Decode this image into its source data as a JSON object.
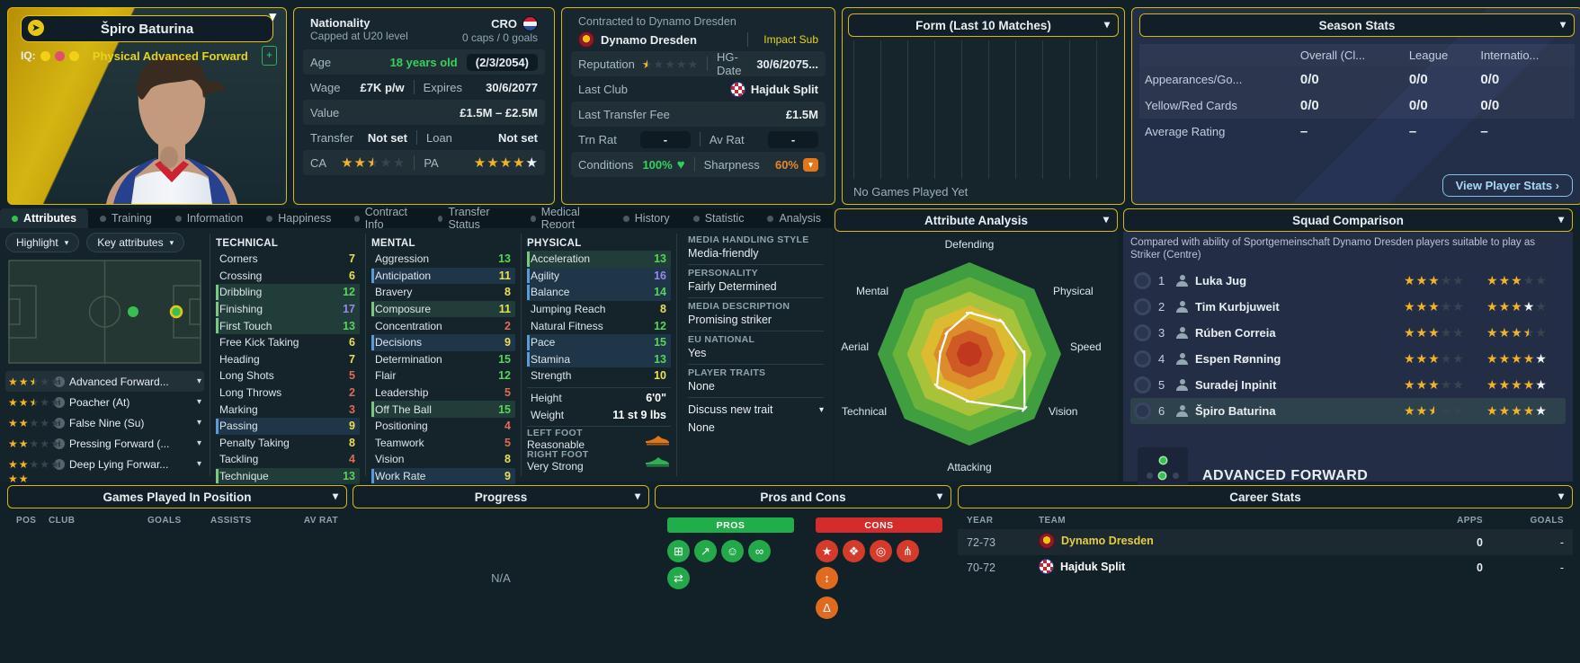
{
  "player": {
    "name": "Špiro Baturina",
    "iq_label": "IQ:",
    "role_tag": "Physical Advanced Forward"
  },
  "info_left": {
    "nationality_label": "Nationality",
    "nationality_sub": "Capped at U20 level",
    "country_code": "CRO",
    "caps": "0 caps / 0 goals",
    "age_label": "Age",
    "age_value": "18 years old",
    "birth_date": "(2/3/2054)",
    "wage_label": "Wage",
    "wage_value": "£7K p/w",
    "expires_label": "Expires",
    "expires_value": "30/6/2077",
    "value_label": "Value",
    "value_value": "£1.5M – £2.5M",
    "transfer_label": "Transfer",
    "transfer_value": "Not set",
    "loan_label": "Loan",
    "loan_value": "Not set",
    "ca_label": "CA",
    "pa_label": "PA",
    "ca_stars": {
      "full": 2,
      "half": 1,
      "empty": 2
    },
    "pa_stars": {
      "full": 4,
      "white": 1
    }
  },
  "info_right": {
    "contracted_to": "Contracted to Dynamo Dresden",
    "club": "Dynamo Dresden",
    "squad_status": "Impact Sub",
    "reputation_label": "Reputation",
    "reputation_stars": {
      "half": 1,
      "empty": 4
    },
    "hg_label": "HG-Date",
    "hg_value": "30/6/2075...",
    "last_club_label": "Last Club",
    "last_club": "Hajduk Split",
    "fee_label": "Last Transfer Fee",
    "fee_value": "£1.5M",
    "trn_label": "Trn Rat",
    "trn_value": "-",
    "avrat_label": "Av Rat",
    "avrat_value": "-",
    "cond_label": "Conditions",
    "cond_value": "100%",
    "sharp_label": "Sharpness",
    "sharp_value": "60%"
  },
  "form_panel": {
    "title": "Form (Last 10 Matches)",
    "empty": "No Games Played Yet"
  },
  "season_stats": {
    "title": "Season Stats",
    "columns": [
      "Overall (Cl...",
      "League",
      "Internatio..."
    ],
    "rows": [
      {
        "label": "Appearances/Go...",
        "values": [
          "0/0",
          "0/0",
          "0/0"
        ]
      },
      {
        "label": "Yellow/Red Cards",
        "values": [
          "0/0",
          "0/0",
          "0/0"
        ]
      },
      {
        "label": "Average Rating",
        "values": [
          "–",
          "–",
          "–"
        ]
      }
    ],
    "button": "View Player Stats ›"
  },
  "tabs": [
    {
      "label": "Attributes",
      "active": true
    },
    {
      "label": "Training"
    },
    {
      "label": "Information"
    },
    {
      "label": "Happiness"
    },
    {
      "label": "Contract Info"
    },
    {
      "label": "Transfer Status"
    },
    {
      "label": "Medical Report"
    },
    {
      "label": "History"
    },
    {
      "label": "Statistic"
    },
    {
      "label": "Analysis"
    }
  ],
  "attributes_toolbar": {
    "highlight": "Highlight",
    "key_attributes": "Key attributes"
  },
  "roles": [
    {
      "stars": {
        "full": 2,
        "half": 1,
        "empty": 2
      },
      "label": "Advanced Forward...",
      "selected": true
    },
    {
      "stars": {
        "full": 2,
        "half": 1,
        "empty": 2
      },
      "label": "Poacher (At)"
    },
    {
      "stars": {
        "full": 2,
        "empty": 3
      },
      "label": "False Nine (Su)"
    },
    {
      "stars": {
        "full": 2,
        "empty": 3
      },
      "label": "Pressing Forward (..."
    },
    {
      "stars": {
        "full": 2,
        "empty": 3
      },
      "label": "Deep Lying Forwar..."
    }
  ],
  "technical": {
    "title": "TECHNICAL",
    "attrs": [
      {
        "name": "Corners",
        "value": 7
      },
      {
        "name": "Crossing",
        "value": 6
      },
      {
        "name": "Dribbling",
        "value": 12,
        "hl": "g"
      },
      {
        "name": "Finishing",
        "value": 17,
        "hl": "g"
      },
      {
        "name": "First Touch",
        "value": 13,
        "hl": "g"
      },
      {
        "name": "Free Kick Taking",
        "value": 6
      },
      {
        "name": "Heading",
        "value": 7
      },
      {
        "name": "Long Shots",
        "value": 5
      },
      {
        "name": "Long Throws",
        "value": 2
      },
      {
        "name": "Marking",
        "value": 3
      },
      {
        "name": "Passing",
        "value": 9,
        "hl": "b"
      },
      {
        "name": "Penalty Taking",
        "value": 8
      },
      {
        "name": "Tackling",
        "value": 4
      },
      {
        "name": "Technique",
        "value": 13,
        "hl": "g"
      }
    ]
  },
  "mental": {
    "title": "MENTAL",
    "attrs": [
      {
        "name": "Aggression",
        "value": 13
      },
      {
        "name": "Anticipation",
        "value": 11,
        "hl": "b"
      },
      {
        "name": "Bravery",
        "value": 8
      },
      {
        "name": "Composure",
        "value": 11,
        "hl": "g"
      },
      {
        "name": "Concentration",
        "value": 2
      },
      {
        "name": "Decisions",
        "value": 9,
        "hl": "b"
      },
      {
        "name": "Determination",
        "value": 15
      },
      {
        "name": "Flair",
        "value": 12
      },
      {
        "name": "Leadership",
        "value": 5
      },
      {
        "name": "Off The Ball",
        "value": 15,
        "hl": "g"
      },
      {
        "name": "Positioning",
        "value": 4
      },
      {
        "name": "Teamwork",
        "value": 5
      },
      {
        "name": "Vision",
        "value": 8
      },
      {
        "name": "Work Rate",
        "value": 9,
        "hl": "b"
      }
    ]
  },
  "physical": {
    "title": "PHYSICAL",
    "attrs": [
      {
        "name": "Acceleration",
        "value": 13,
        "hl": "g"
      },
      {
        "name": "Agility",
        "value": 16,
        "hl": "b"
      },
      {
        "name": "Balance",
        "value": 14,
        "hl": "b"
      },
      {
        "name": "Jumping Reach",
        "value": 8
      },
      {
        "name": "Natural Fitness",
        "value": 12
      },
      {
        "name": "Pace",
        "value": 15,
        "hl": "b"
      },
      {
        "name": "Stamina",
        "value": 13,
        "hl": "b"
      },
      {
        "name": "Strength",
        "value": 10
      }
    ],
    "height_label": "Height",
    "height_value": "6'0\"",
    "weight_label": "Weight",
    "weight_value": "11 st 9 lbs"
  },
  "feet": {
    "left_label": "LEFT FOOT",
    "left_value": "Reasonable",
    "right_label": "RIGHT FOOT",
    "right_value": "Very Strong"
  },
  "media": {
    "rows": [
      {
        "h": "MEDIA HANDLING STYLE",
        "v": "Media-friendly"
      },
      {
        "h": "PERSONALITY",
        "v": "Fairly Determined"
      },
      {
        "h": "MEDIA DESCRIPTION",
        "v": "Promising striker"
      },
      {
        "h": "EU NATIONAL",
        "v": "Yes"
      },
      {
        "h": "PLAYER TRAITS",
        "v": "None"
      }
    ],
    "discuss": "Discuss new trait",
    "extra": "None"
  },
  "attribute_analysis": {
    "title": "Attribute Analysis",
    "axes": [
      "Defending",
      "Physical",
      "Speed",
      "Vision",
      "Attacking",
      "Technical",
      "Aerial",
      "Mental"
    ],
    "values": [
      0.45,
      0.5,
      0.6,
      0.85,
      0.52,
      0.5,
      0.32,
      0.34
    ]
  },
  "squad_comparison": {
    "title": "Squad Comparison",
    "description": "Compared with ability of Sportgemeinschaft Dynamo Dresden players suitable to play as Striker (Centre)",
    "players": [
      {
        "rank": "1",
        "name": "Luka Jug",
        "current": {
          "full": 3,
          "empty": 2
        },
        "potential": {
          "full": 3,
          "empty": 2
        }
      },
      {
        "rank": "2",
        "name": "Tim Kurbjuweit",
        "current": {
          "full": 3,
          "empty": 2
        },
        "potential": {
          "full": 3,
          "white": 1,
          "empty": 1
        }
      },
      {
        "rank": "3",
        "name": "Rúben Correia",
        "current": {
          "full": 3,
          "empty": 2
        },
        "potential": {
          "full": 3,
          "half": 1,
          "empty": 1
        }
      },
      {
        "rank": "4",
        "name": "Espen Rønning",
        "current": {
          "full": 3,
          "empty": 2
        },
        "potential": {
          "full": 4,
          "white": 1
        }
      },
      {
        "rank": "5",
        "name": "Suradej Inpinit",
        "current": {
          "full": 3,
          "empty": 2
        },
        "potential": {
          "full": 4,
          "white": 1
        }
      },
      {
        "rank": "6",
        "name": "Špiro Baturina",
        "current": {
          "full": 2,
          "half": 1,
          "empty": 2
        },
        "potential": {
          "full": 4,
          "white": 1
        },
        "selected": true
      }
    ],
    "role_name": "ADVANCED FORWARD"
  },
  "bottom": {
    "games_played": {
      "title": "Games Played In Position",
      "columns": [
        "POS",
        "CLUB",
        "GOALS",
        "ASSISTS",
        "AV RAT"
      ]
    },
    "progress": {
      "title": "Progress",
      "empty": "N/A"
    },
    "pros_cons": {
      "title": "Pros and Cons",
      "pros_label": "PROS",
      "cons_label": "CONS",
      "pros_icons": [
        {
          "name": "calculator-icon",
          "glyph": "⊞",
          "color": "#23a84a"
        },
        {
          "name": "growth-arrow-icon",
          "glyph": "↗",
          "color": "#23a84a"
        },
        {
          "name": "personality-icon",
          "glyph": "☺",
          "color": "#23a84a"
        },
        {
          "name": "link-icon",
          "glyph": "∞",
          "color": "#23a84a"
        },
        {
          "name": "arrows-icon",
          "glyph": "⇄",
          "color": "#23a84a"
        }
      ],
      "cons_icons": [
        {
          "name": "star-icon",
          "glyph": "★",
          "color": "#d43b2b"
        },
        {
          "name": "medal-icon",
          "glyph": "❖",
          "color": "#d43b2b"
        },
        {
          "name": "target-icon",
          "glyph": "◎",
          "color": "#d43b2b"
        },
        {
          "name": "junction-icon",
          "glyph": "⋔",
          "color": "#d43b2b"
        },
        {
          "name": "temperature-icon",
          "glyph": "↕",
          "color": "#e06a1f"
        }
      ],
      "cons_icons_row2": [
        {
          "name": "flask-icon",
          "glyph": "Δ",
          "color": "#e06a1f"
        }
      ]
    },
    "career": {
      "title": "Career Stats",
      "columns": [
        "YEAR",
        "TEAM",
        "APPS",
        "GOALS"
      ],
      "rows": [
        {
          "year": "72-73",
          "team": "Dynamo Dresden",
          "team_color": "#e3cf3e",
          "badge": "dd",
          "apps": "0",
          "goals": "-"
        },
        {
          "year": "70-72",
          "team": "Hajduk Split",
          "team_color": "#ffffff",
          "badge": "hs",
          "apps": "0",
          "goals": "-"
        }
      ]
    }
  },
  "colors": {
    "accent_yellow": "#d7b810",
    "value_low": "#e06a5a",
    "value_mid": "#ece054",
    "value_good": "#58d35a",
    "value_elite": "#9b86f2",
    "highlight_green": "#7ec87e",
    "highlight_blue": "#5b9bd5",
    "condition_green": "#2fd15c",
    "sharpness_orange": "#e8872a",
    "pros_green": "#1fae4a",
    "cons_red": "#d42b2b",
    "button_blue": "#7fc4e8"
  }
}
